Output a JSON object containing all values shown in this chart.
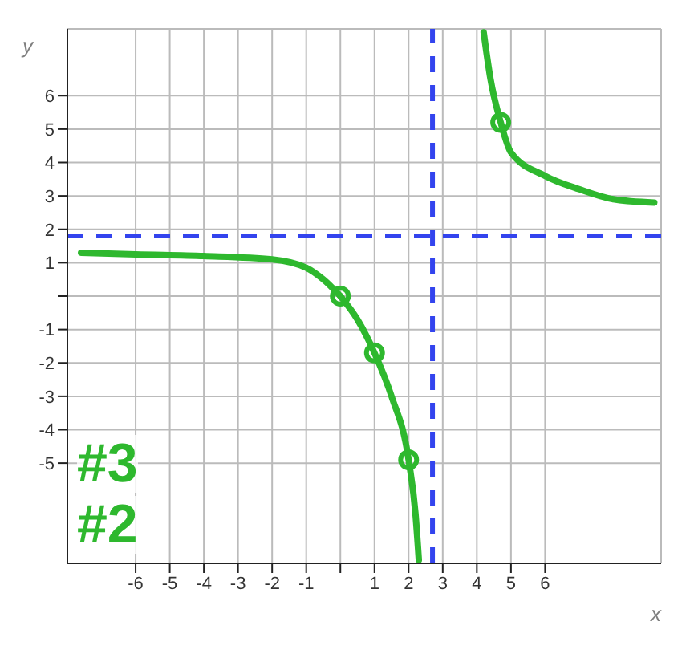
{
  "chart_data": {
    "type": "line",
    "xlabel": "x",
    "ylabel": "y",
    "xlim": [
      -8,
      9.4
    ],
    "ylim": [
      -8,
      8
    ],
    "xticks": [
      -6,
      -5,
      -4,
      -3,
      -2,
      -1,
      {
        "value": 0,
        "label": null
      },
      1,
      2,
      3,
      4,
      5,
      6
    ],
    "yticks": [
      -5,
      -4,
      -3,
      -2,
      -1,
      {
        "value": 0,
        "label": null
      },
      1,
      2,
      3,
      4,
      5,
      6
    ],
    "grid": true,
    "legend": false,
    "marker": "none",
    "line_style": "solid",
    "series": [
      {
        "color": "#2eb82e",
        "x": [
          -7.6,
          -6,
          -4,
          -2,
          -1,
          -0.5,
          0
        ],
        "values": [
          1.3,
          1.25,
          1.2,
          1.1,
          0.85,
          0.5,
          0
        ]
      },
      {
        "color": "#2eb82e",
        "x": [
          0,
          0.5,
          1,
          1.5,
          2,
          2.2,
          2.3
        ],
        "values": [
          0,
          -0.7,
          -1.7,
          -3,
          -4.9,
          -6.5,
          -7.9
        ]
      },
      {
        "color": "#2eb82e",
        "x": [
          4.2,
          4.4,
          4.7,
          5,
          6,
          7,
          8,
          9.2
        ],
        "values": [
          7.9,
          6.5,
          5.2,
          4.3,
          3.6,
          3.2,
          2.9,
          2.8
        ]
      },
      {
        "type": "scatter",
        "marker": "circle",
        "color": "#2eb82e",
        "x": [
          0,
          1,
          2,
          4.7
        ],
        "values": [
          0,
          -1.7,
          -4.9,
          5.2
        ]
      }
    ],
    "ref_lines": [
      {
        "axis": "x",
        "value": 2.7,
        "color": "#3344ee",
        "line_style": "dashed"
      },
      {
        "axis": "y",
        "value": 1.8,
        "color": "#3344ee",
        "line_style": "dashed"
      }
    ],
    "annotations": [
      "#3",
      "#2"
    ]
  }
}
